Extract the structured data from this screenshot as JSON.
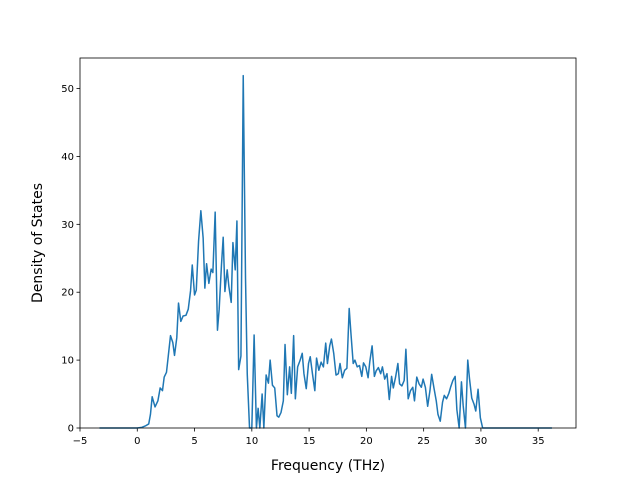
{
  "chart_data": {
    "type": "line",
    "title": "",
    "xlabel": "Frequency (THz)",
    "ylabel": "Density of States",
    "xlim": [
      -5.0,
      38.3
    ],
    "ylim": [
      0,
      54.5
    ],
    "xticks": [
      -5,
      0,
      5,
      10,
      15,
      20,
      25,
      30,
      35
    ],
    "yticks": [
      0,
      10,
      20,
      30,
      40,
      50
    ],
    "grid": false,
    "legend": "none",
    "series": [
      {
        "color": "#1f77b4",
        "points": [
          [
            -3.3,
            0
          ],
          [
            -2.0,
            0
          ],
          [
            -1.0,
            0
          ],
          [
            0.0,
            0
          ],
          [
            0.4,
            0.1
          ],
          [
            0.7,
            0.3
          ],
          [
            1.0,
            0.6
          ],
          [
            1.15,
            2.0
          ],
          [
            1.3,
            4.6
          ],
          [
            1.55,
            3.1
          ],
          [
            1.8,
            4.0
          ],
          [
            2.0,
            5.9
          ],
          [
            2.2,
            5.5
          ],
          [
            2.35,
            7.5
          ],
          [
            2.55,
            8.2
          ],
          [
            2.7,
            10.5
          ],
          [
            2.9,
            13.6
          ],
          [
            3.1,
            12.6
          ],
          [
            3.25,
            10.7
          ],
          [
            3.45,
            13.3
          ],
          [
            3.6,
            18.4
          ],
          [
            3.8,
            15.7
          ],
          [
            4.0,
            16.5
          ],
          [
            4.25,
            16.6
          ],
          [
            4.45,
            17.5
          ],
          [
            4.65,
            20.2
          ],
          [
            4.8,
            24.0
          ],
          [
            5.0,
            19.6
          ],
          [
            5.15,
            20.3
          ],
          [
            5.35,
            27.5
          ],
          [
            5.55,
            32.0
          ],
          [
            5.75,
            28.0
          ],
          [
            5.9,
            20.6
          ],
          [
            6.05,
            24.2
          ],
          [
            6.25,
            21.3
          ],
          [
            6.45,
            23.4
          ],
          [
            6.6,
            22.9
          ],
          [
            6.8,
            31.8
          ],
          [
            7.0,
            14.4
          ],
          [
            7.15,
            17.5
          ],
          [
            7.35,
            24.0
          ],
          [
            7.5,
            28.1
          ],
          [
            7.65,
            20.1
          ],
          [
            7.85,
            23.3
          ],
          [
            8.0,
            20.8
          ],
          [
            8.2,
            18.5
          ],
          [
            8.35,
            27.3
          ],
          [
            8.55,
            23.3
          ],
          [
            8.7,
            30.5
          ],
          [
            8.85,
            8.6
          ],
          [
            9.05,
            10.6
          ],
          [
            9.25,
            51.9
          ],
          [
            9.45,
            22.0
          ],
          [
            9.6,
            8.0
          ],
          [
            9.8,
            0
          ],
          [
            10.0,
            0
          ],
          [
            10.2,
            13.7
          ],
          [
            10.4,
            0
          ],
          [
            10.55,
            2.9
          ],
          [
            10.7,
            0
          ],
          [
            10.9,
            5.0
          ],
          [
            11.05,
            0
          ],
          [
            11.25,
            7.8
          ],
          [
            11.45,
            6.6
          ],
          [
            11.6,
            10.0
          ],
          [
            11.8,
            6.3
          ],
          [
            12.0,
            5.9
          ],
          [
            12.2,
            1.8
          ],
          [
            12.35,
            1.6
          ],
          [
            12.55,
            2.3
          ],
          [
            12.75,
            4.0
          ],
          [
            12.9,
            12.3
          ],
          [
            13.1,
            4.9
          ],
          [
            13.3,
            9.0
          ],
          [
            13.45,
            5.1
          ],
          [
            13.65,
            13.6
          ],
          [
            13.8,
            4.3
          ],
          [
            14.0,
            9.0
          ],
          [
            14.2,
            9.9
          ],
          [
            14.4,
            11.0
          ],
          [
            14.55,
            8.0
          ],
          [
            14.75,
            5.8
          ],
          [
            14.95,
            9.5
          ],
          [
            15.1,
            10.5
          ],
          [
            15.3,
            7.9
          ],
          [
            15.5,
            5.5
          ],
          [
            15.65,
            10.3
          ],
          [
            15.85,
            8.5
          ],
          [
            16.05,
            9.7
          ],
          [
            16.25,
            9.0
          ],
          [
            16.45,
            12.5
          ],
          [
            16.6,
            9.5
          ],
          [
            16.8,
            12.1
          ],
          [
            16.95,
            13.1
          ],
          [
            17.15,
            11.0
          ],
          [
            17.35,
            7.8
          ],
          [
            17.55,
            8.0
          ],
          [
            17.7,
            9.5
          ],
          [
            17.9,
            7.4
          ],
          [
            18.1,
            8.5
          ],
          [
            18.3,
            8.8
          ],
          [
            18.5,
            17.6
          ],
          [
            18.65,
            14.0
          ],
          [
            18.85,
            9.5
          ],
          [
            19.0,
            10.0
          ],
          [
            19.2,
            9.0
          ],
          [
            19.4,
            9.2
          ],
          [
            19.6,
            7.6
          ],
          [
            19.75,
            9.6
          ],
          [
            19.95,
            9.0
          ],
          [
            20.15,
            7.4
          ],
          [
            20.3,
            9.8
          ],
          [
            20.5,
            12.1
          ],
          [
            20.7,
            7.6
          ],
          [
            20.85,
            8.4
          ],
          [
            21.05,
            8.9
          ],
          [
            21.25,
            8.0
          ],
          [
            21.4,
            9.0
          ],
          [
            21.6,
            7.2
          ],
          [
            21.8,
            8.0
          ],
          [
            22.0,
            4.2
          ],
          [
            22.2,
            7.6
          ],
          [
            22.35,
            5.9
          ],
          [
            22.55,
            7.5
          ],
          [
            22.75,
            9.5
          ],
          [
            22.9,
            6.5
          ],
          [
            23.1,
            6.2
          ],
          [
            23.3,
            7.0
          ],
          [
            23.45,
            11.6
          ],
          [
            23.65,
            4.3
          ],
          [
            23.85,
            5.5
          ],
          [
            24.05,
            6.0
          ],
          [
            24.2,
            4.0
          ],
          [
            24.4,
            7.5
          ],
          [
            24.6,
            6.5
          ],
          [
            24.8,
            6.0
          ],
          [
            24.95,
            7.2
          ],
          [
            25.15,
            6.0
          ],
          [
            25.35,
            3.2
          ],
          [
            25.55,
            5.5
          ],
          [
            25.7,
            7.9
          ],
          [
            25.9,
            5.9
          ],
          [
            26.1,
            4.0
          ],
          [
            26.25,
            2.0
          ],
          [
            26.45,
            1.0
          ],
          [
            26.65,
            3.8
          ],
          [
            26.8,
            4.8
          ],
          [
            27.0,
            4.3
          ],
          [
            27.2,
            5.1
          ],
          [
            27.35,
            6.0
          ],
          [
            27.55,
            7.0
          ],
          [
            27.75,
            7.6
          ],
          [
            27.9,
            2.7
          ],
          [
            28.1,
            0
          ],
          [
            28.3,
            6.8
          ],
          [
            28.45,
            3.3
          ],
          [
            28.65,
            0
          ],
          [
            28.85,
            10.0
          ],
          [
            29.0,
            7.3
          ],
          [
            29.2,
            4.4
          ],
          [
            29.4,
            3.5
          ],
          [
            29.55,
            2.5
          ],
          [
            29.75,
            5.7
          ],
          [
            29.95,
            1.5
          ],
          [
            30.15,
            0
          ],
          [
            31.0,
            0
          ],
          [
            32.0,
            0
          ],
          [
            33.0,
            0
          ],
          [
            34.0,
            0
          ],
          [
            35.0,
            0
          ],
          [
            36.2,
            0
          ]
        ]
      }
    ]
  }
}
